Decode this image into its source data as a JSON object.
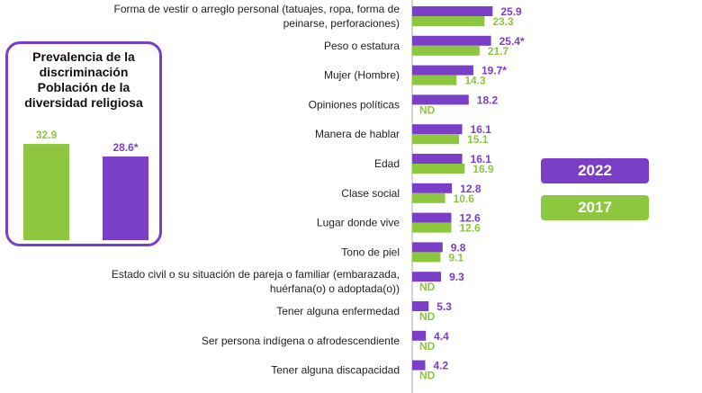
{
  "colors": {
    "y2022": "#7b3fc7",
    "y2017": "#8dc63f"
  },
  "inset": {
    "title_lines": [
      "Prevalencia de la",
      "discriminación",
      "Población de la",
      "diversidad religiosa"
    ],
    "labels": [
      "32.9",
      "28.6*"
    ]
  },
  "legend": {
    "y2022": "2022",
    "y2017": "2017"
  },
  "chart_data": [
    {
      "type": "bar",
      "categories": [
        [
          "Forma de vestir o arreglo personal (tatuajes, ropa, forma de",
          "peinarse, perforaciones)"
        ],
        [
          "Peso o estatura"
        ],
        [
          "Mujer (Hombre)"
        ],
        [
          "Opiniones políticas"
        ],
        [
          "Manera de hablar"
        ],
        [
          "Edad"
        ],
        [
          "Clase social"
        ],
        [
          "Lugar donde vive"
        ],
        [
          "Tono de piel"
        ],
        [
          "Estado civil o su situación de pareja o familiar (embarazada,",
          "huérfana(o) o adoptada(o))"
        ],
        [
          "Tener alguna enfermedad"
        ],
        [
          "Ser persona indígena o afrodescendiente"
        ],
        [
          "Tener alguna discapacidad"
        ]
      ],
      "series": [
        {
          "name": "2022",
          "values": [
            25.9,
            25.4,
            19.7,
            18.2,
            16.1,
            16.1,
            12.8,
            12.6,
            9.8,
            9.3,
            5.3,
            4.4,
            4.2
          ],
          "labels": [
            "25.9",
            "25.4*",
            "19.7*",
            "18.2",
            "16.1",
            "16.1",
            "12.8",
            "12.6",
            "9.8",
            "9.3",
            "5.3",
            "4.4",
            "4.2"
          ]
        },
        {
          "name": "2017",
          "values": [
            23.3,
            21.7,
            14.3,
            null,
            15.1,
            16.9,
            10.6,
            12.6,
            9.1,
            null,
            null,
            null,
            null
          ],
          "labels": [
            "23.3",
            "21.7",
            "14.3",
            "ND",
            "15.1",
            "16.9",
            "10.6",
            "12.6",
            "9.1",
            "ND",
            "ND",
            "ND",
            "ND"
          ]
        }
      ]
    },
    {
      "type": "bar",
      "categories": [
        "2017",
        "2022"
      ],
      "values": [
        32.9,
        28.6
      ]
    }
  ]
}
